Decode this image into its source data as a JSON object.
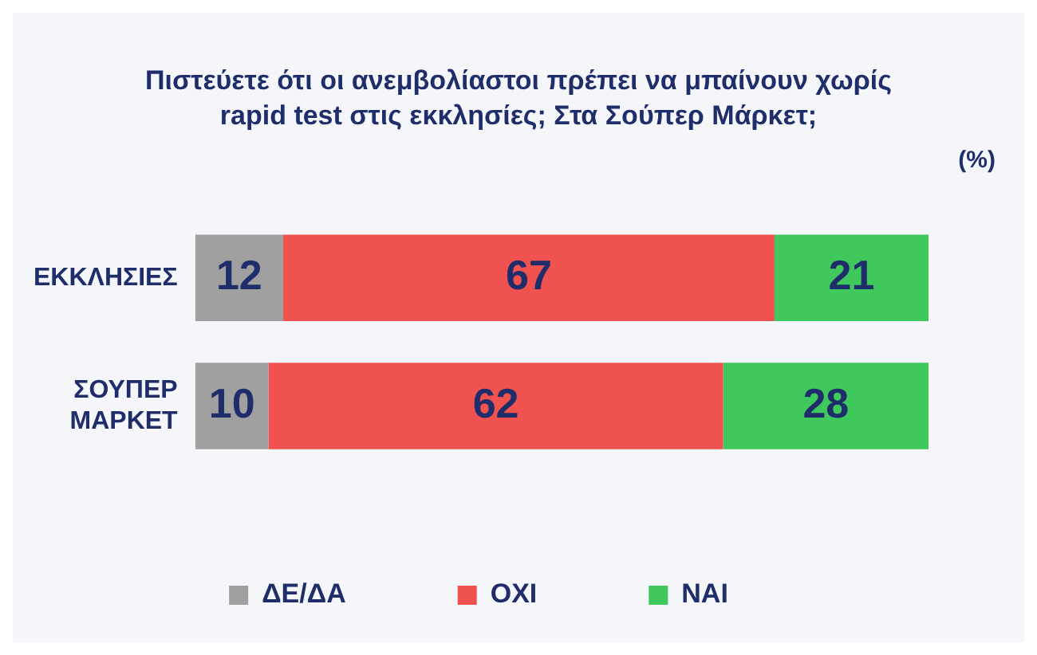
{
  "chart_data": {
    "type": "bar",
    "orientation": "horizontal",
    "stacked": true,
    "title": "Πιστεύετε ότι οι ανεμβολίαστοι πρέπει να μπαίνουν χωρίς rapid test στις εκκλησίες; Στα Σούπερ Μάρκετ;",
    "annotations": [
      "(%)"
    ],
    "categories": [
      "ΕΚΚΛΗΣΙΕΣ",
      "ΣΟΥΠΕΡ ΜΑΡΚΕΤ"
    ],
    "series": [
      {
        "name": "ΔΕ/ΔΑ",
        "color": "#a0a0a0",
        "values": [
          12,
          10
        ]
      },
      {
        "name": "ΟΧΙ",
        "color": "#f0524f",
        "values": [
          67,
          62
        ]
      },
      {
        "name": "ΝΑΙ",
        "color": "#3fc95c",
        "values": [
          21,
          28
        ]
      }
    ],
    "data_labels": true,
    "legend": "bottom",
    "tick_labels": "y",
    "grid": false
  }
}
